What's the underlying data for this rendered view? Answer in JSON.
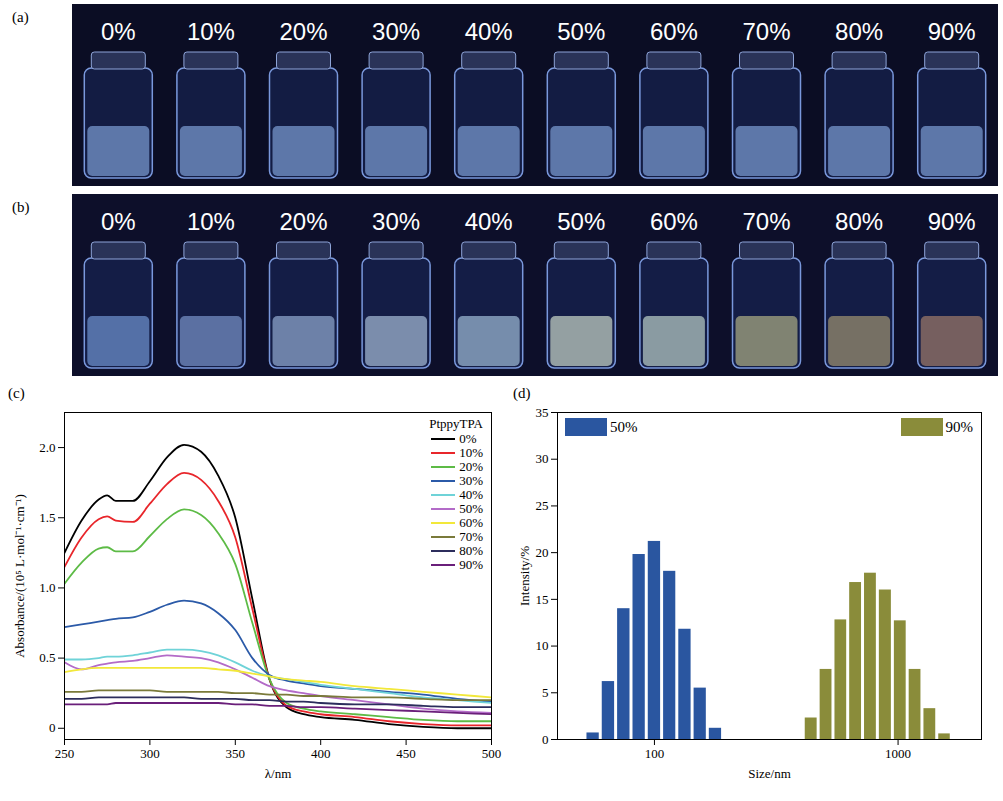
{
  "photos": [
    {
      "label": "(a)",
      "vials": [
        "0%",
        "10%",
        "20%",
        "30%",
        "40%",
        "50%",
        "60%",
        "70%",
        "80%",
        "90%"
      ],
      "colors": [
        "#8fb4ee",
        "#8fb4ee",
        "#8fb4ee",
        "#8fb4ee",
        "#8fb4ee",
        "#8fb4ee",
        "#8fb4ee",
        "#8fb4ee",
        "#8fb4ee",
        "#8fb4ee"
      ]
    },
    {
      "label": "(b)",
      "vials": [
        "0%",
        "10%",
        "20%",
        "30%",
        "40%",
        "50%",
        "60%",
        "70%",
        "80%",
        "90%"
      ],
      "colors": [
        "#7fa8e8",
        "#8aa8e0",
        "#a8c4ea",
        "#c0d8f0",
        "#b8d8f0",
        "#eaf8e0",
        "#d8f0e0",
        "#c8c890",
        "#b8a878",
        "#b88c70"
      ]
    }
  ],
  "chart_data": [
    {
      "type": "line",
      "panel_label": "(c)",
      "x_label": "λ/nm",
      "y_label": "Absorbance/(10⁵ L·mol⁻¹·cm⁻¹)",
      "legend_title": "PtppyTPA",
      "legend": "top-right",
      "grid": false,
      "xlim": [
        250,
        500
      ],
      "xticks": [
        250,
        300,
        350,
        400,
        450,
        500
      ],
      "ylim": [
        -0.08,
        2.25
      ],
      "yticks": [
        0,
        0.5,
        {
          "value": 1,
          "label": "1.0"
        },
        1.5,
        {
          "value": 2,
          "label": "2.0"
        }
      ],
      "x": [
        250,
        260,
        270,
        275,
        280,
        290,
        300,
        310,
        320,
        330,
        340,
        350,
        360,
        370,
        380,
        390,
        400,
        420,
        440,
        460,
        480,
        500
      ],
      "series": [
        {
          "name": "0%",
          "color": "#000000",
          "values": [
            1.25,
            1.48,
            1.63,
            1.66,
            1.62,
            1.62,
            1.76,
            1.93,
            2.02,
            1.97,
            1.8,
            1.5,
            0.92,
            0.35,
            0.15,
            0.1,
            0.08,
            0.06,
            0.03,
            0.01,
            0.0,
            0.0
          ]
        },
        {
          "name": "10%",
          "color": "#e8262b",
          "values": [
            1.15,
            1.36,
            1.49,
            1.51,
            1.48,
            1.47,
            1.6,
            1.74,
            1.82,
            1.77,
            1.62,
            1.36,
            0.85,
            0.35,
            0.16,
            0.12,
            0.1,
            0.08,
            0.05,
            0.03,
            0.02,
            0.02
          ]
        },
        {
          "name": "20%",
          "color": "#5dbb46",
          "values": [
            1.03,
            1.18,
            1.28,
            1.29,
            1.26,
            1.26,
            1.37,
            1.49,
            1.56,
            1.52,
            1.39,
            1.17,
            0.75,
            0.35,
            0.18,
            0.14,
            0.12,
            0.1,
            0.08,
            0.06,
            0.05,
            0.05
          ]
        },
        {
          "name": "30%",
          "color": "#2b5aa8",
          "values": [
            0.72,
            0.74,
            0.76,
            0.77,
            0.78,
            0.79,
            0.83,
            0.88,
            0.91,
            0.89,
            0.82,
            0.7,
            0.5,
            0.38,
            0.34,
            0.32,
            0.3,
            0.28,
            0.26,
            0.24,
            0.21,
            0.19
          ]
        },
        {
          "name": "40%",
          "color": "#6fd3d8",
          "values": [
            0.49,
            0.49,
            0.5,
            0.51,
            0.51,
            0.52,
            0.54,
            0.56,
            0.56,
            0.55,
            0.52,
            0.47,
            0.41,
            0.37,
            0.35,
            0.33,
            0.31,
            0.28,
            0.25,
            0.22,
            0.2,
            0.18
          ]
        },
        {
          "name": "50%",
          "color": "#b36bc8",
          "values": [
            0.47,
            0.42,
            0.45,
            0.46,
            0.47,
            0.48,
            0.5,
            0.52,
            0.51,
            0.5,
            0.47,
            0.42,
            0.36,
            0.3,
            0.27,
            0.25,
            0.23,
            0.2,
            0.17,
            0.14,
            0.12,
            0.11
          ]
        },
        {
          "name": "60%",
          "color": "#f2e83a",
          "values": [
            0.4,
            0.42,
            0.43,
            0.43,
            0.43,
            0.43,
            0.43,
            0.43,
            0.43,
            0.43,
            0.42,
            0.41,
            0.39,
            0.37,
            0.35,
            0.34,
            0.33,
            0.3,
            0.28,
            0.26,
            0.24,
            0.22
          ]
        },
        {
          "name": "70%",
          "color": "#7a7a3a",
          "values": [
            0.26,
            0.26,
            0.27,
            0.27,
            0.27,
            0.27,
            0.27,
            0.26,
            0.26,
            0.26,
            0.26,
            0.25,
            0.25,
            0.24,
            0.24,
            0.23,
            0.23,
            0.22,
            0.22,
            0.21,
            0.2,
            0.2
          ]
        },
        {
          "name": "80%",
          "color": "#2c2d5c",
          "values": [
            0.21,
            0.21,
            0.22,
            0.22,
            0.22,
            0.22,
            0.22,
            0.22,
            0.22,
            0.21,
            0.21,
            0.21,
            0.2,
            0.2,
            0.19,
            0.19,
            0.18,
            0.17,
            0.17,
            0.16,
            0.15,
            0.15
          ]
        },
        {
          "name": "90%",
          "color": "#6a1f7a",
          "values": [
            0.17,
            0.17,
            0.17,
            0.17,
            0.18,
            0.18,
            0.18,
            0.18,
            0.18,
            0.18,
            0.18,
            0.17,
            0.17,
            0.16,
            0.16,
            0.15,
            0.15,
            0.14,
            0.13,
            0.12,
            0.11,
            0.1
          ]
        }
      ]
    },
    {
      "type": "histogram",
      "panel_label": "(d)",
      "x_label": "Size/nm",
      "y_label": "Intensity/%",
      "log": "x",
      "legend": "top",
      "grid": false,
      "xlim": [
        40,
        2200
      ],
      "xticks": [
        100,
        1000
      ],
      "ylim": [
        0,
        35
      ],
      "yticks": [
        0,
        5,
        10,
        15,
        20,
        25,
        30,
        35
      ],
      "series": [
        {
          "name": "50%",
          "color": "#2a56a0",
          "bins": [
            52.1,
            60.2,
            69.6,
            80.5,
            93.0,
            107.5,
            124.1,
            143.4,
            165.6,
            191.3
          ],
          "values": [
            0.7,
            6.2,
            14,
            19.8,
            21.2,
            18,
            11.8,
            5.5,
            1.2
          ]
        },
        {
          "name": "90%",
          "color": "#8a8c3a",
          "bins": [
            410,
            472,
            543,
            624,
            718,
            826,
            952,
            1095,
            1259,
            1448,
            1661
          ],
          "values": [
            2.3,
            7.5,
            12.8,
            16.8,
            17.8,
            16,
            12.7,
            7.5,
            3.3,
            0.6
          ]
        }
      ]
    }
  ]
}
